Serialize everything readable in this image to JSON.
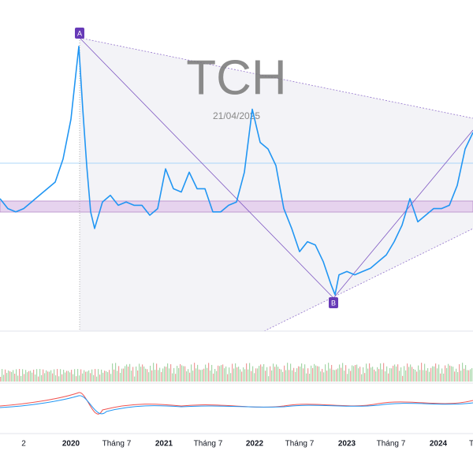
{
  "chart_data": {
    "type": "line",
    "title": "TCH",
    "subtitle": "21/04/2025",
    "annotations": [
      "A",
      "B"
    ],
    "xlim": [
      0,
      600
    ],
    "ylim": [
      0,
      100
    ],
    "xticks": [
      {
        "value": 30,
        "label": "2"
      },
      {
        "value": 90,
        "label": "2020"
      },
      {
        "value": 148,
        "label": "Tháng 7"
      },
      {
        "value": 208,
        "label": "2021"
      },
      {
        "value": 264,
        "label": "Tháng 7"
      },
      {
        "value": 323,
        "label": "2022"
      },
      {
        "value": 380,
        "label": "Tháng 7"
      },
      {
        "value": 440,
        "label": "2023"
      },
      {
        "value": 496,
        "label": "Tháng 7"
      },
      {
        "value": 556,
        "label": "2024"
      },
      {
        "value": 598,
        "label": "T"
      }
    ],
    "series": [
      {
        "color": "#2196f3",
        "x": [
          0,
          10,
          20,
          30,
          40,
          50,
          60,
          70,
          80,
          90,
          100,
          105,
          110,
          115,
          120,
          130,
          140,
          150,
          160,
          170,
          180,
          190,
          200,
          210,
          220,
          230,
          240,
          250,
          260,
          270,
          280,
          290,
          300,
          310,
          320,
          330,
          340,
          350,
          360,
          370,
          380,
          390,
          400,
          410,
          420,
          425,
          430,
          440,
          450,
          460,
          470,
          480,
          490,
          500,
          510,
          520,
          530,
          540,
          550,
          560,
          570,
          580,
          590,
          600
        ],
        "values": [
          40,
          37,
          36,
          37,
          39,
          41,
          43,
          45,
          52,
          64,
          86,
          67,
          50,
          36,
          31,
          39,
          41,
          38,
          39,
          38,
          38,
          35,
          37,
          49,
          43,
          42,
          48,
          43,
          43,
          36,
          36,
          38,
          39,
          48,
          67,
          57,
          55,
          50,
          37,
          31,
          24,
          27,
          26,
          21,
          14,
          11,
          17,
          18,
          17,
          18,
          19,
          21,
          23,
          27,
          32,
          40,
          33,
          35,
          37,
          37,
          38,
          44,
          55,
          60
        ]
      }
    ]
  }
}
